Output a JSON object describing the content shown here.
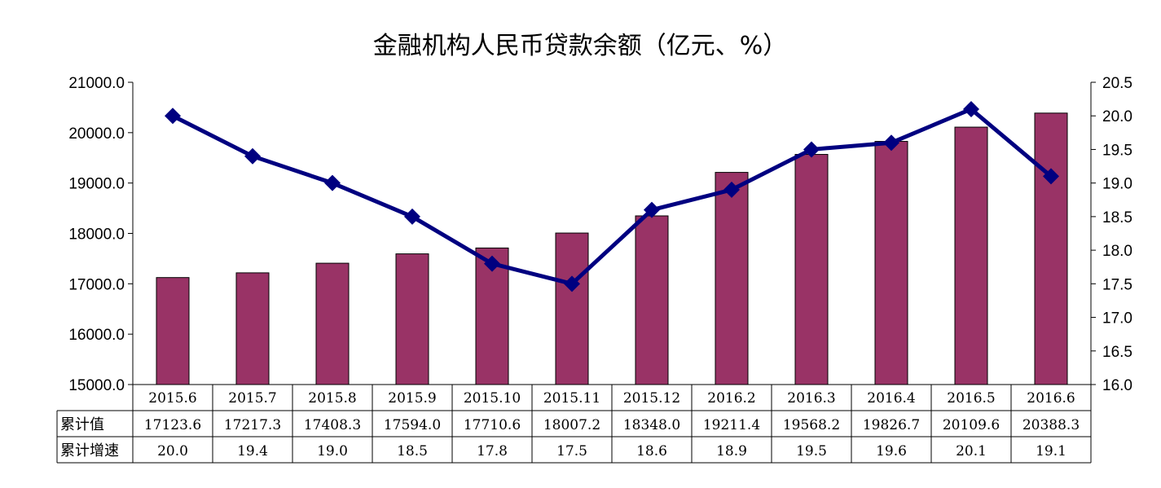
{
  "chart_data": {
    "type": "bar+line",
    "title": "金融机构人民币贷款余额（亿元、%）",
    "categories": [
      "2015.6",
      "2015.7",
      "2015.8",
      "2015.9",
      "2015.10",
      "2015.11",
      "2015.12",
      "2016.2",
      "2016.3",
      "2016.4",
      "2016.5",
      "2016.6"
    ],
    "series": [
      {
        "name": "累计值",
        "kind": "bar",
        "axis": "left",
        "color": "#993366",
        "values": [
          17123.6,
          17217.3,
          17408.3,
          17594.0,
          17710.6,
          18007.2,
          18348.0,
          19211.4,
          19568.2,
          19826.7,
          20109.6,
          20388.3
        ],
        "labels": [
          "17123.6",
          "17217.3",
          "17408.3",
          "17594.0",
          "17710.6",
          "18007.2",
          "18348.0",
          "19211.4",
          "19568.2",
          "19826.7",
          "20109.6",
          "20388.3"
        ]
      },
      {
        "name": "累计增速",
        "kind": "line",
        "axis": "right",
        "color": "#000080",
        "marker": "diamond",
        "values": [
          20.0,
          19.4,
          19.0,
          18.5,
          17.8,
          17.5,
          18.6,
          18.9,
          19.5,
          19.6,
          20.1,
          19.1
        ],
        "labels": [
          "20.0",
          "19.4",
          "19.0",
          "18.5",
          "17.8",
          "17.5",
          "18.6",
          "18.9",
          "19.5",
          "19.6",
          "20.1",
          "19.1"
        ]
      }
    ],
    "y_left": {
      "range": [
        15000,
        21000
      ],
      "ticks": [
        15000,
        16000,
        17000,
        18000,
        19000,
        20000,
        21000
      ],
      "tick_labels": [
        "15000.0",
        "16000.0",
        "17000.0",
        "18000.0",
        "19000.0",
        "20000.0",
        "21000.0"
      ]
    },
    "y_right": {
      "range": [
        16.0,
        20.5
      ],
      "ticks": [
        16.0,
        16.5,
        17.0,
        17.5,
        18.0,
        18.5,
        19.0,
        19.5,
        20.0,
        20.5
      ],
      "tick_labels": [
        "16.0",
        "16.5",
        "17.0",
        "17.5",
        "18.0",
        "18.5",
        "19.0",
        "19.5",
        "20.0",
        "20.5"
      ]
    },
    "grid": false,
    "legend": "data-table-below"
  }
}
